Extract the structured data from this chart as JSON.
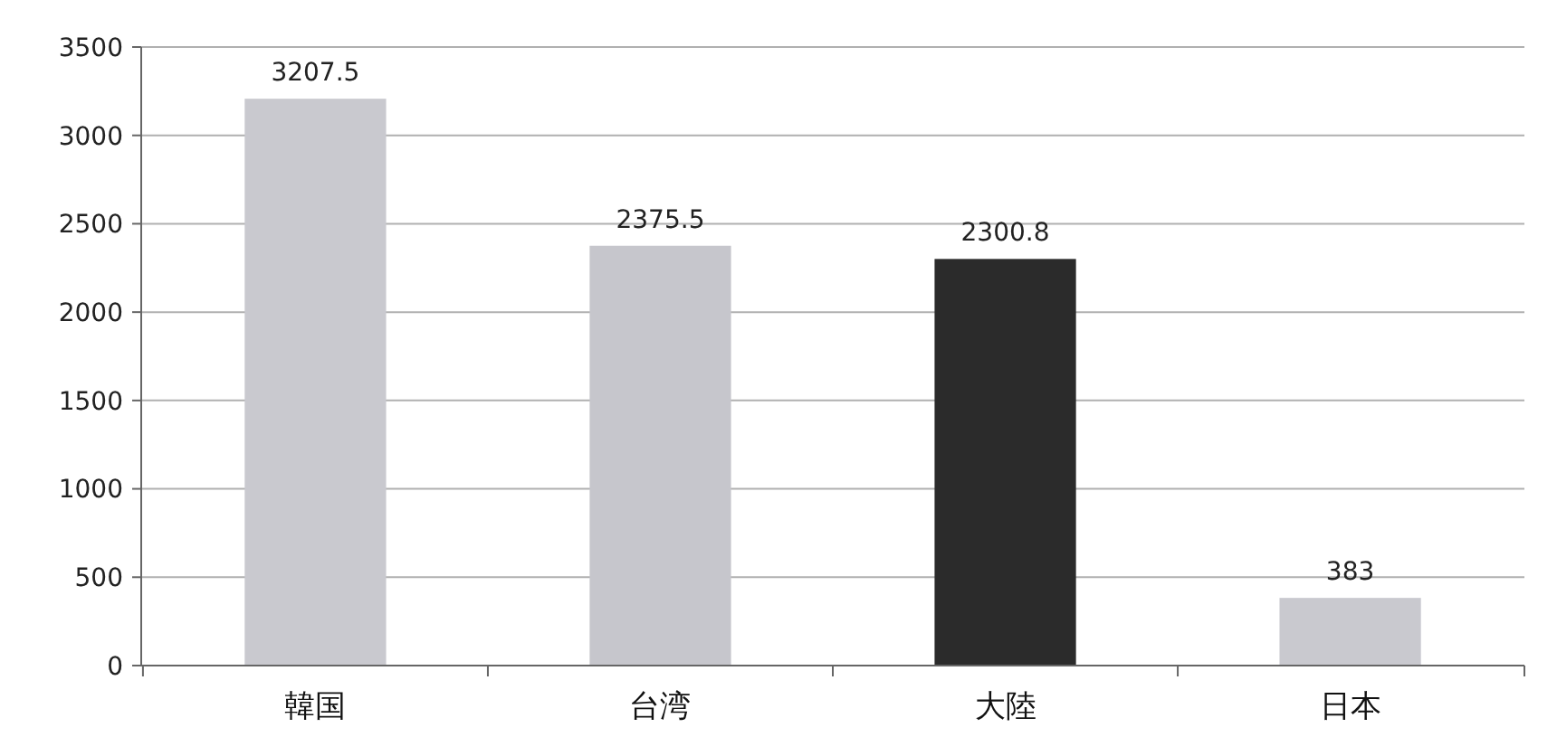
{
  "chart_data": {
    "type": "bar",
    "categories": [
      "韓国",
      "台湾",
      "大陸",
      "日本"
    ],
    "values": [
      3207.5,
      2375.5,
      2300.8,
      383
    ],
    "colors": [
      "#c9c9cf",
      "#c6c6cc",
      "#2b2b2b",
      "#c9c9cf"
    ],
    "ylim": [
      0,
      3500
    ],
    "yticks": [
      0,
      500,
      1000,
      1500,
      2000,
      2500,
      3000,
      3500
    ],
    "grid": "y",
    "data_labels": true
  }
}
